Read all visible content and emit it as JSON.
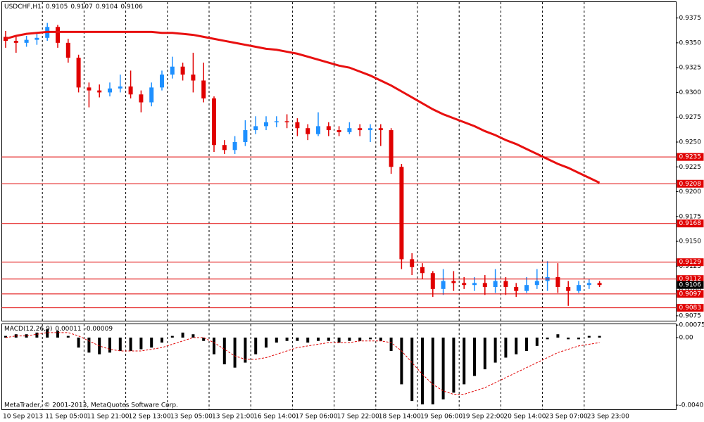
{
  "chart_data": [
    {
      "type": "candlestick",
      "title": "USDCHF,H1",
      "header_values": [
        0.9105,
        0.9107,
        0.9104,
        0.9106
      ],
      "categories": [
        "10 Sep 2013",
        null,
        null,
        null,
        "11 Sep 05:00",
        null,
        null,
        null,
        "11 Sep 21:00",
        null,
        null,
        null,
        "12 Sep 13:00",
        null,
        null,
        null,
        "13 Sep 05:00",
        null,
        null,
        null,
        "13 Sep 21:00",
        null,
        null,
        null,
        "16 Sep 14:00",
        null,
        null,
        null,
        "17 Sep 06:00",
        null,
        null,
        null,
        "17 Sep 22:00",
        null,
        null,
        null,
        "18 Sep 14:00",
        null,
        null,
        null,
        "19 Sep 06:00",
        null,
        null,
        null,
        "19 Sep 22:00",
        null,
        null,
        null,
        "20 Sep 14:00",
        null,
        null,
        null,
        "23 Sep 07:00",
        null,
        null,
        null,
        "23 Sep 23:00",
        null
      ],
      "candles": [
        [
          0.9356,
          0.9362,
          0.9345,
          0.9352
        ],
        [
          0.9352,
          0.9356,
          0.934,
          0.935
        ],
        [
          0.935,
          0.9357,
          0.9346,
          0.9353
        ],
        [
          0.9353,
          0.936,
          0.9348,
          0.9355
        ],
        [
          0.9355,
          0.937,
          0.9352,
          0.9366
        ],
        [
          0.9366,
          0.9368,
          0.9345,
          0.935
        ],
        [
          0.935,
          0.9354,
          0.933,
          0.9335
        ],
        [
          0.9335,
          0.9338,
          0.93,
          0.9305
        ],
        [
          0.9305,
          0.931,
          0.9285,
          0.9302
        ],
        [
          0.9302,
          0.9308,
          0.9295,
          0.93
        ],
        [
          0.93,
          0.931,
          0.9296,
          0.9304
        ],
        [
          0.9304,
          0.9318,
          0.93,
          0.9306
        ],
        [
          0.9306,
          0.9322,
          0.9294,
          0.9298
        ],
        [
          0.9298,
          0.9302,
          0.928,
          0.929
        ],
        [
          0.929,
          0.931,
          0.9286,
          0.9305
        ],
        [
          0.9305,
          0.9322,
          0.9302,
          0.9318
        ],
        [
          0.9318,
          0.9336,
          0.9314,
          0.9326
        ],
        [
          0.9326,
          0.933,
          0.9312,
          0.9318
        ],
        [
          0.9318,
          0.934,
          0.93,
          0.9312
        ],
        [
          0.9312,
          0.933,
          0.929,
          0.9294
        ],
        [
          0.9294,
          0.9296,
          0.924,
          0.9247
        ],
        [
          0.9247,
          0.9252,
          0.9238,
          0.9242
        ],
        [
          0.9242,
          0.9256,
          0.9238,
          0.925
        ],
        [
          0.925,
          0.9272,
          0.9246,
          0.9262
        ],
        [
          0.9262,
          0.9276,
          0.9258,
          0.9266
        ],
        [
          0.9266,
          0.9276,
          0.9262,
          0.927
        ],
        [
          0.927,
          0.9276,
          0.9265,
          0.9271
        ],
        [
          0.9271,
          0.9278,
          0.9264,
          0.927
        ],
        [
          0.927,
          0.9274,
          0.9256,
          0.9264
        ],
        [
          0.9264,
          0.9268,
          0.9252,
          0.9258
        ],
        [
          0.9258,
          0.928,
          0.9256,
          0.9266
        ],
        [
          0.9266,
          0.927,
          0.9256,
          0.9262
        ],
        [
          0.9262,
          0.9266,
          0.9256,
          0.926
        ],
        [
          0.926,
          0.927,
          0.9258,
          0.9264
        ],
        [
          0.9264,
          0.9268,
          0.9256,
          0.9262
        ],
        [
          0.9262,
          0.9268,
          0.925,
          0.9264
        ],
        [
          0.9264,
          0.9268,
          0.9246,
          0.9262
        ],
        [
          0.9262,
          0.9264,
          0.9218,
          0.9225
        ],
        [
          0.9225,
          0.9228,
          0.9122,
          0.9132
        ],
        [
          0.9132,
          0.9138,
          0.9116,
          0.9124
        ],
        [
          0.9124,
          0.9128,
          0.9112,
          0.9118
        ],
        [
          0.9118,
          0.912,
          0.9094,
          0.9102
        ],
        [
          0.9102,
          0.9122,
          0.9096,
          0.911
        ],
        [
          0.911,
          0.912,
          0.91,
          0.9108
        ],
        [
          0.9108,
          0.9114,
          0.9102,
          0.9106
        ],
        [
          0.9106,
          0.9114,
          0.91,
          0.9108
        ],
        [
          0.9108,
          0.9116,
          0.9096,
          0.9104
        ],
        [
          0.9104,
          0.9122,
          0.9098,
          0.911
        ],
        [
          0.911,
          0.9114,
          0.9096,
          0.9104
        ],
        [
          0.9104,
          0.9108,
          0.9094,
          0.91
        ],
        [
          0.91,
          0.9114,
          0.9098,
          0.9106
        ],
        [
          0.9106,
          0.9122,
          0.9102,
          0.911
        ],
        [
          0.911,
          0.913,
          0.91,
          0.9114
        ],
        [
          0.9114,
          0.9128,
          0.9098,
          0.9104
        ],
        [
          0.9104,
          0.911,
          0.9085,
          0.91
        ],
        [
          0.91,
          0.911,
          0.9098,
          0.9106
        ],
        [
          0.9106,
          0.9112,
          0.9102,
          0.9108
        ],
        [
          0.9108,
          0.911,
          0.9104,
          0.9106
        ]
      ],
      "up_color": "#1e90ff",
      "down_color": "#e00000",
      "ma": {
        "color": "#e81010",
        "values": [
          0.9354,
          0.9357,
          0.9359,
          0.936,
          0.9361,
          0.9361,
          0.9361,
          0.9361,
          0.9361,
          0.9361,
          0.9361,
          0.9361,
          0.9361,
          0.9361,
          0.9361,
          0.936,
          0.936,
          0.9359,
          0.9358,
          0.9356,
          0.9354,
          0.9352,
          0.935,
          0.9348,
          0.9346,
          0.9344,
          0.9343,
          0.9341,
          0.9339,
          0.9336,
          0.9333,
          0.933,
          0.9327,
          0.9325,
          0.9321,
          0.9317,
          0.9312,
          0.9307,
          0.9301,
          0.9295,
          0.9289,
          0.9283,
          0.9278,
          0.9274,
          0.927,
          0.9266,
          0.9261,
          0.9257,
          0.9252,
          0.9248,
          0.9243,
          0.9238,
          0.9233,
          0.9228,
          0.9224,
          0.9219,
          0.9214,
          0.9209
        ]
      },
      "levels": [
        0.9235,
        0.9208,
        0.9168,
        0.9129,
        0.9112,
        0.9097,
        0.9083
      ],
      "level_color": "#e00000",
      "last_price": 0.9106,
      "ylim": [
        0.907,
        0.9391
      ],
      "yticks": [
        0.9375,
        {
          "value": 0.935,
          "label": "0.9350"
        },
        0.9325,
        {
          "value": 0.93,
          "label": "0.9300"
        },
        0.9275,
        {
          "value": 0.925,
          "label": "0.9250"
        },
        0.9225,
        {
          "value": 0.92,
          "label": "0.9200"
        },
        0.9175,
        {
          "value": 0.915,
          "label": "0.9150"
        },
        0.9125,
        {
          "value": 0.91,
          "label": "0.9100"
        },
        0.9075
      ],
      "grid": true
    },
    {
      "type": "macd",
      "title": "MACD(12,26,9)",
      "header_values": [
        0.00011,
        -9e-05
      ],
      "histogram": [
        0.0001,
        0.0002,
        0.0002,
        0.0003,
        0.0005,
        0.0004,
        0.0001,
        -0.0006,
        -0.0009,
        -0.001,
        -0.0009,
        -0.0008,
        -0.0008,
        -0.0007,
        -0.0006,
        -0.0003,
        0.0001,
        0.0003,
        0.0002,
        -0.0002,
        -0.001,
        -0.0016,
        -0.0018,
        -0.0015,
        -0.001,
        -0.0006,
        -0.0003,
        -0.0002,
        -0.0002,
        -0.0003,
        -0.0002,
        -0.0002,
        -0.0003,
        -0.0002,
        -0.0002,
        -0.0001,
        -0.0002,
        -0.0008,
        -0.0028,
        -0.0038,
        -0.004,
        -0.004,
        -0.0037,
        -0.0033,
        -0.0028,
        -0.0023,
        -0.0019,
        -0.0015,
        -0.0012,
        -0.001,
        -0.0008,
        -0.0005,
        -0.0001,
        0.0002,
        -0.0001,
        -0.0001,
        0.0001,
        0.0001
      ],
      "signal": [
        0,
        0.0001,
        0.0001,
        0.0002,
        0.0003,
        0.0003,
        0.0003,
        0.0001,
        -0.0002,
        -0.0005,
        -0.0007,
        -0.0008,
        -0.0008,
        -0.0008,
        -0.0007,
        -0.0006,
        -0.0004,
        -0.0002,
        0,
        0,
        -0.0003,
        -0.0007,
        -0.0011,
        -0.0013,
        -0.0013,
        -0.0012,
        -0.001,
        -0.0008,
        -0.0006,
        -0.0005,
        -0.0004,
        -0.0003,
        -0.0003,
        -0.0003,
        -0.0002,
        -0.0002,
        -0.0002,
        -0.0003,
        -0.0008,
        -0.0015,
        -0.0022,
        -0.0028,
        -0.0032,
        -0.0034,
        -0.0034,
        -0.0032,
        -0.003,
        -0.0027,
        -0.0024,
        -0.0021,
        -0.0018,
        -0.0015,
        -0.0012,
        -0.0009,
        -0.0007,
        -0.0005,
        -0.0004,
        -0.0003
      ],
      "histogram_color": "#000000",
      "signal_color": "#e00000",
      "ylim": [
        -0.0043,
        0.0008
      ],
      "yticks": [
        0.00075,
        {
          "value": 0,
          "label": "0.00"
        },
        -0.00405
      ]
    }
  ],
  "footer": "MetaTrader, © 2001-2013, MetaQuotes Software Corp."
}
